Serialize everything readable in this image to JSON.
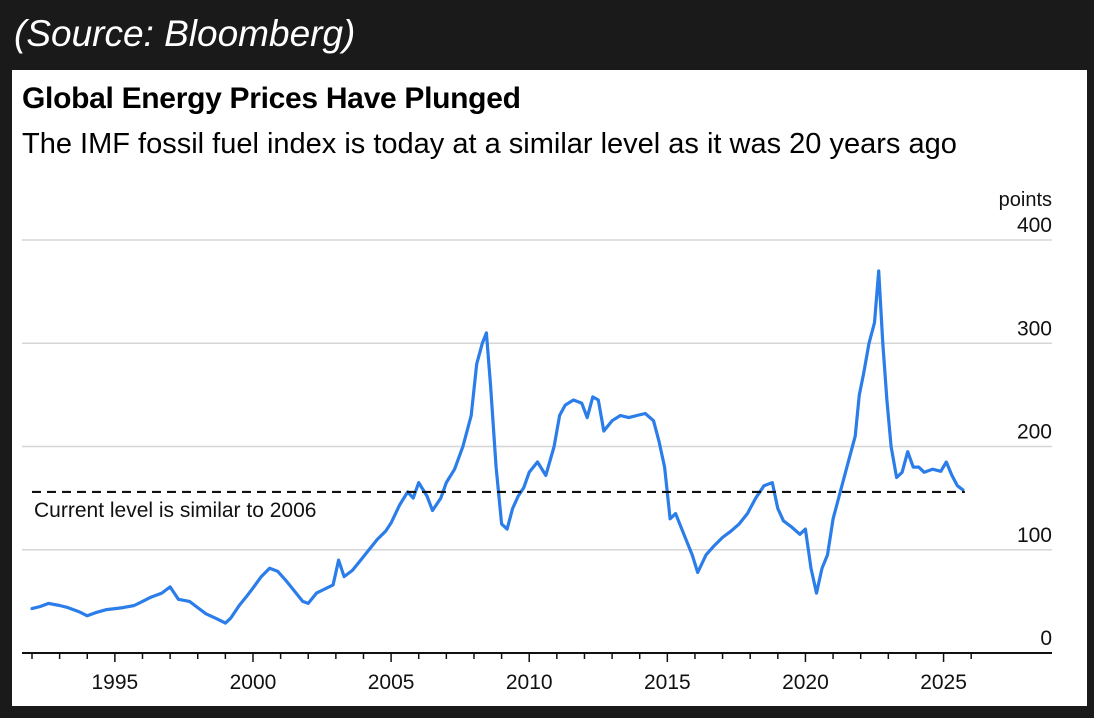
{
  "source_caption": "(Source: Bloomberg)",
  "chart_data": {
    "type": "line",
    "title": "Global Energy Prices Have Plunged",
    "subtitle": "The IMF fossil fuel index is today at a similar level as it was 20 years ago",
    "ylabel": "points",
    "xlabel": "",
    "ylim": [
      0,
      400
    ],
    "xlim": [
      1992,
      2026.5
    ],
    "y_ticks": [
      0,
      100,
      200,
      300,
      400
    ],
    "x_ticks": [
      1995,
      2000,
      2005,
      2010,
      2015,
      2020,
      2025
    ],
    "grid": true,
    "series": [
      {
        "color": "#2b7de9",
        "x": [
          1992.0,
          1992.3,
          1992.6,
          1993.0,
          1993.3,
          1993.7,
          1994.0,
          1994.3,
          1994.7,
          1995.0,
          1995.3,
          1995.7,
          1996.0,
          1996.3,
          1996.7,
          1997.0,
          1997.3,
          1997.7,
          1998.0,
          1998.3,
          1998.7,
          1999.0,
          1999.2,
          1999.5,
          1999.8,
          2000.0,
          2000.3,
          2000.6,
          2000.9,
          2001.2,
          2001.5,
          2001.8,
          2002.0,
          2002.3,
          2002.6,
          2002.9,
          2003.1,
          2003.3,
          2003.6,
          2003.9,
          2004.2,
          2004.5,
          2004.8,
          2005.0,
          2005.3,
          2005.6,
          2005.8,
          2006.0,
          2006.3,
          2006.5,
          2006.8,
          2007.0,
          2007.3,
          2007.6,
          2007.9,
          2008.1,
          2008.3,
          2008.45,
          2008.6,
          2008.8,
          2009.0,
          2009.2,
          2009.4,
          2009.6,
          2009.8,
          2010.0,
          2010.3,
          2010.6,
          2010.9,
          2011.1,
          2011.3,
          2011.6,
          2011.9,
          2012.1,
          2012.3,
          2012.5,
          2012.7,
          2013.0,
          2013.3,
          2013.6,
          2013.9,
          2014.2,
          2014.5,
          2014.7,
          2014.9,
          2015.1,
          2015.3,
          2015.6,
          2015.9,
          2016.1,
          2016.4,
          2016.7,
          2017.0,
          2017.3,
          2017.6,
          2017.9,
          2018.2,
          2018.5,
          2018.8,
          2019.0,
          2019.2,
          2019.5,
          2019.8,
          2020.0,
          2020.2,
          2020.4,
          2020.6,
          2020.8,
          2021.0,
          2021.2,
          2021.5,
          2021.8,
          2021.95,
          2022.1,
          2022.3,
          2022.5,
          2022.65,
          2022.8,
          2022.95,
          2023.1,
          2023.3,
          2023.5,
          2023.7,
          2023.9,
          2024.1,
          2024.3,
          2024.6,
          2024.9,
          2025.1,
          2025.3,
          2025.5,
          2025.6,
          2025.7
        ],
        "y": [
          43,
          45,
          48,
          46,
          44,
          40,
          36,
          39,
          42,
          43,
          44,
          46,
          50,
          54,
          58,
          64,
          52,
          50,
          44,
          38,
          33,
          29,
          34,
          46,
          56,
          63,
          74,
          82,
          79,
          70,
          60,
          50,
          48,
          58,
          62,
          66,
          90,
          74,
          80,
          90,
          100,
          110,
          118,
          126,
          143,
          156,
          150,
          165,
          152,
          138,
          150,
          165,
          178,
          200,
          230,
          280,
          300,
          310,
          260,
          180,
          125,
          120,
          140,
          152,
          160,
          175,
          185,
          172,
          200,
          230,
          240,
          245,
          242,
          228,
          248,
          245,
          215,
          225,
          230,
          228,
          230,
          232,
          225,
          205,
          180,
          130,
          135,
          115,
          95,
          78,
          95,
          104,
          112,
          118,
          125,
          135,
          150,
          162,
          165,
          140,
          128,
          122,
          115,
          120,
          82,
          58,
          82,
          95,
          130,
          150,
          180,
          210,
          250,
          270,
          300,
          320,
          370,
          300,
          245,
          200,
          170,
          175,
          195,
          180,
          180,
          175,
          178,
          176,
          185,
          172,
          162,
          160,
          158
        ]
      }
    ],
    "reference_line": {
      "y": 156,
      "style": "dashed",
      "label": "Current level is similar to 2006"
    }
  }
}
